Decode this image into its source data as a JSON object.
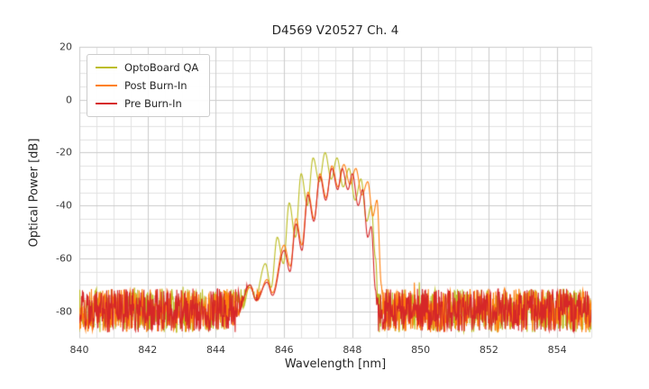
{
  "chart_data": {
    "type": "line",
    "title": "D4569 V20527 Ch. 4",
    "xlabel": "Wavelength [nm]",
    "ylabel": "Optical Power [dB]",
    "xlim": [
      840,
      855
    ],
    "ylim": [
      -90,
      20
    ],
    "x_ticks": [
      840,
      842,
      844,
      846,
      848,
      850,
      852,
      854
    ],
    "y_ticks": [
      20,
      0,
      -20,
      -40,
      -60,
      -80
    ],
    "grid": {
      "minor_x_step": 0.5,
      "major_x_step": 2,
      "minor_y_step": 5,
      "major_y_step": 20,
      "minor_color": "#e2e2e2",
      "major_color": "#cccccc"
    },
    "legend_position": "upper-left",
    "background_color": "#ffffff",
    "noise_floor": {
      "min": -88,
      "max": -71.5,
      "spike_chance": 0.02,
      "spike_boost": 3
    },
    "series": [
      {
        "name": "OptoBoard QA",
        "color": "#bcbd22",
        "seed": 7,
        "envelope": [
          [
            844.35,
            -82
          ],
          [
            844.6,
            -76
          ],
          [
            844.78,
            -79
          ],
          [
            845.0,
            -70
          ],
          [
            845.15,
            -75
          ],
          [
            845.45,
            -62
          ],
          [
            845.62,
            -71
          ],
          [
            845.8,
            -52
          ],
          [
            845.98,
            -62
          ],
          [
            846.15,
            -39
          ],
          [
            846.33,
            -52
          ],
          [
            846.5,
            -28
          ],
          [
            846.68,
            -40
          ],
          [
            846.85,
            -22
          ],
          [
            847.03,
            -31
          ],
          [
            847.2,
            -20
          ],
          [
            847.38,
            -30
          ],
          [
            847.55,
            -22
          ],
          [
            847.73,
            -33
          ],
          [
            847.9,
            -26
          ],
          [
            848.08,
            -38
          ],
          [
            848.25,
            -30
          ],
          [
            848.42,
            -46
          ],
          [
            848.55,
            -40
          ],
          [
            848.68,
            -60
          ],
          [
            848.78,
            -89
          ]
        ]
      },
      {
        "name": "Post Burn-In",
        "color": "#ff7f0e",
        "seed": 13,
        "envelope": [
          [
            844.6,
            -82
          ],
          [
            845.0,
            -71
          ],
          [
            845.2,
            -76
          ],
          [
            845.5,
            -68
          ],
          [
            845.66,
            -73
          ],
          [
            846.0,
            -55
          ],
          [
            846.18,
            -63
          ],
          [
            846.35,
            -45
          ],
          [
            846.52,
            -55
          ],
          [
            846.7,
            -35
          ],
          [
            846.88,
            -45
          ],
          [
            847.05,
            -28
          ],
          [
            847.23,
            -37
          ],
          [
            847.4,
            -25
          ],
          [
            847.58,
            -33
          ],
          [
            847.75,
            -24.5
          ],
          [
            847.93,
            -32
          ],
          [
            848.1,
            -26
          ],
          [
            848.28,
            -36
          ],
          [
            848.45,
            -31
          ],
          [
            848.6,
            -44
          ],
          [
            848.72,
            -38
          ],
          [
            848.85,
            -70
          ],
          [
            848.9,
            -86
          ]
        ]
      },
      {
        "name": "Pre Burn-In",
        "color": "#d62728",
        "seed": 29,
        "envelope": [
          [
            844.6,
            -82
          ],
          [
            845.0,
            -70
          ],
          [
            845.18,
            -76
          ],
          [
            845.5,
            -69
          ],
          [
            845.66,
            -74
          ],
          [
            846.0,
            -57
          ],
          [
            846.17,
            -65
          ],
          [
            846.35,
            -47
          ],
          [
            846.52,
            -57
          ],
          [
            846.7,
            -36
          ],
          [
            846.87,
            -46
          ],
          [
            847.05,
            -29
          ],
          [
            847.22,
            -38
          ],
          [
            847.4,
            -26
          ],
          [
            847.57,
            -34
          ],
          [
            847.7,
            -26
          ],
          [
            847.87,
            -34
          ],
          [
            848.0,
            -28
          ],
          [
            848.17,
            -40
          ],
          [
            848.3,
            -34
          ],
          [
            848.45,
            -52
          ],
          [
            848.55,
            -48
          ],
          [
            848.68,
            -72
          ],
          [
            848.75,
            -86
          ]
        ]
      }
    ],
    "draw_order": [
      0,
      1,
      2
    ]
  }
}
